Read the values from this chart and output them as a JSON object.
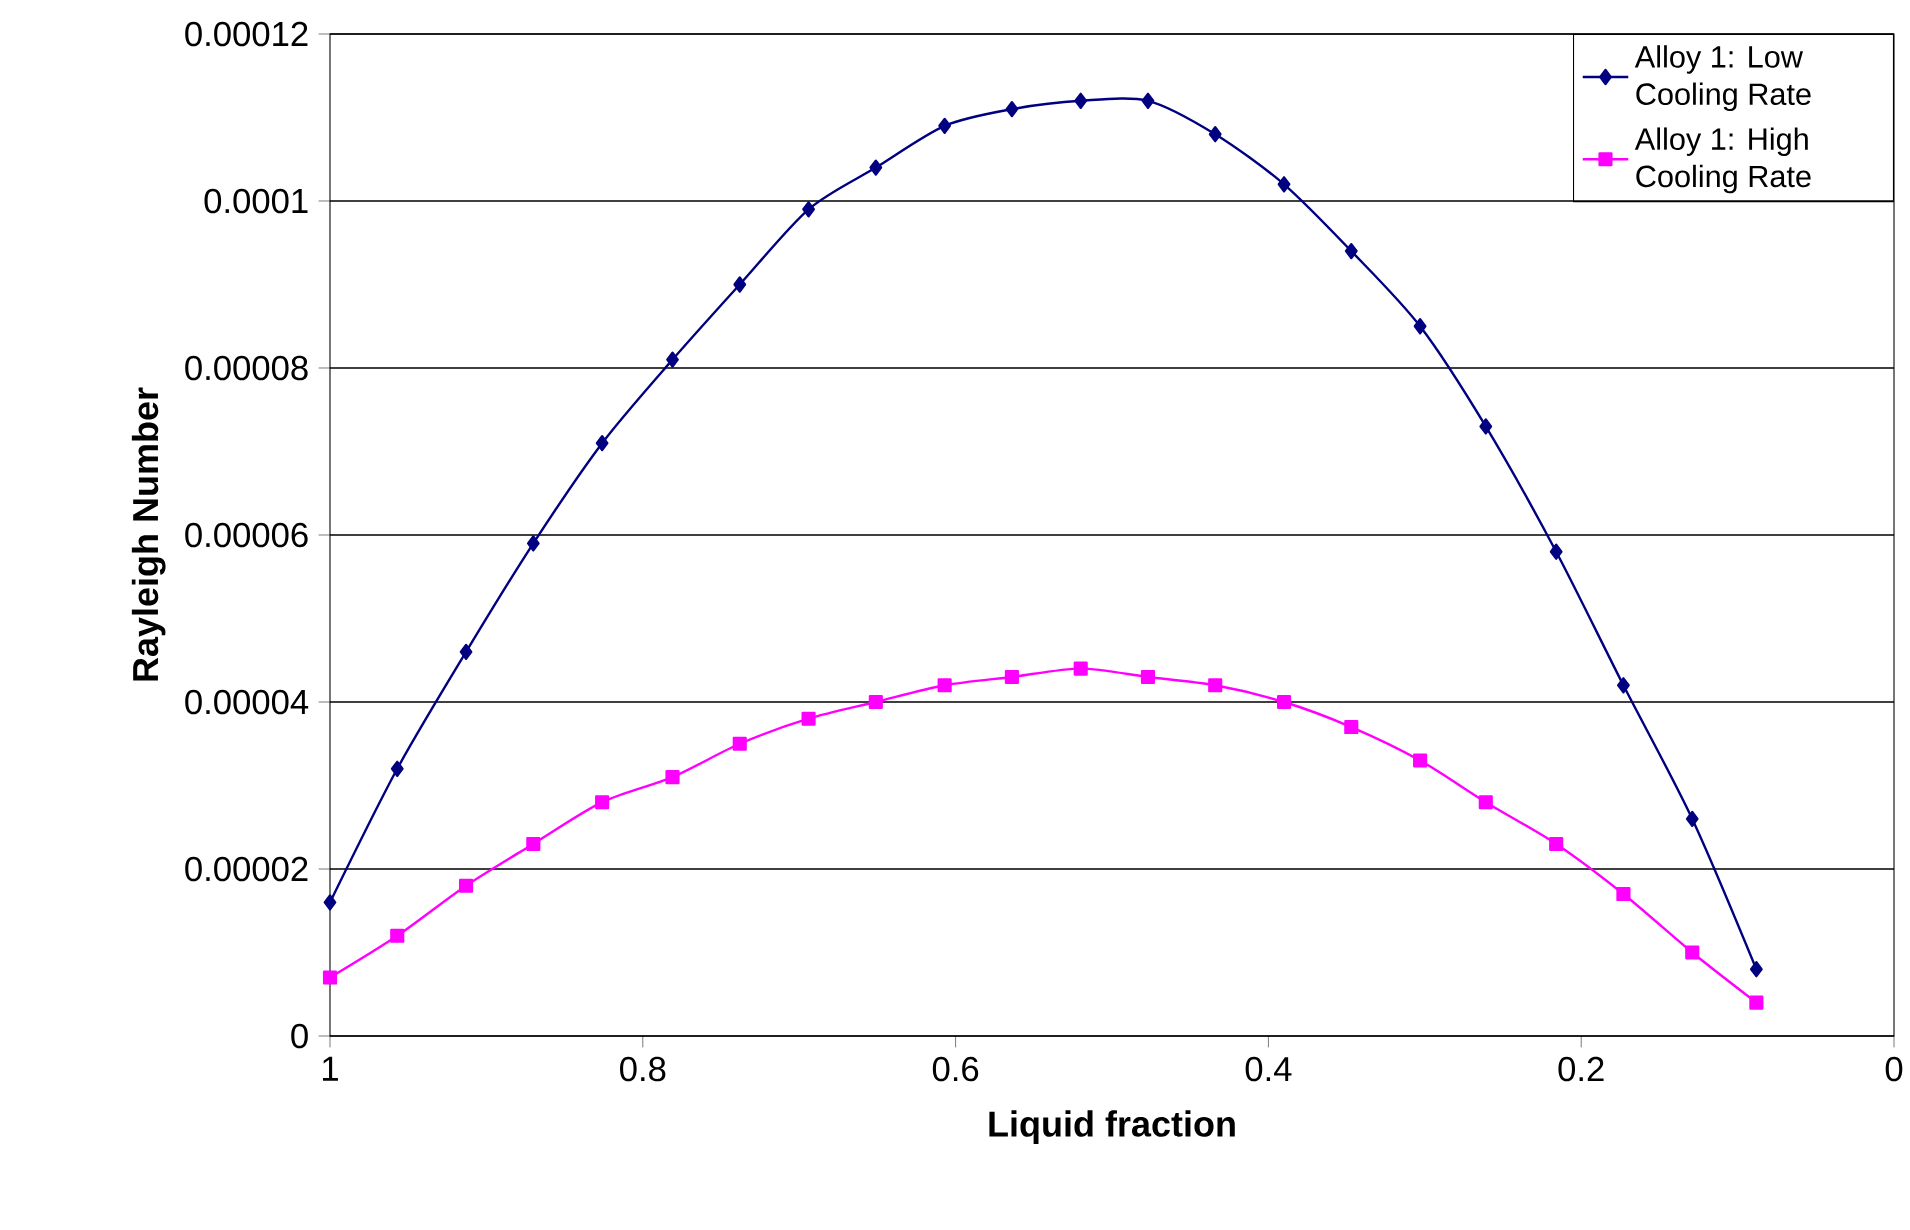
{
  "chart_data": {
    "type": "line",
    "xlabel": "Liquid fraction",
    "ylabel": "Rayleigh Number",
    "x": [
      1,
      0.957,
      0.913,
      0.87,
      0.826,
      0.781,
      0.738,
      0.694,
      0.651,
      0.607,
      0.564,
      0.52,
      0.477,
      0.434,
      0.39,
      0.347,
      0.303,
      0.261,
      0.216,
      0.173,
      0.129,
      0.088
    ],
    "series": [
      {
        "name": "Alloy 1: Low Cooling Rate",
        "color": "#000080",
        "marker": "diamond",
        "values": [
          1.6e-05,
          3.2e-05,
          4.6e-05,
          5.9e-05,
          7.1e-05,
          8.1e-05,
          9e-05,
          9.9e-05,
          0.000104,
          0.000109,
          0.000111,
          0.000112,
          0.000112,
          0.000108,
          0.000102,
          9.4e-05,
          8.5e-05,
          7.3e-05,
          5.8e-05,
          4.2e-05,
          2.6e-05,
          8e-06
        ]
      },
      {
        "name": "Alloy 1: High Cooling Rate",
        "color": "#ff00ff",
        "marker": "square",
        "values": [
          7e-06,
          1.2e-05,
          1.8e-05,
          2.3e-05,
          2.8e-05,
          3.1e-05,
          3.5e-05,
          3.8e-05,
          4e-05,
          4.2e-05,
          4.3e-05,
          4.4e-05,
          4.3e-05,
          4.2e-05,
          4e-05,
          3.7e-05,
          3.3e-05,
          2.8e-05,
          2.3e-05,
          1.7e-05,
          1e-05,
          4e-06
        ]
      }
    ],
    "xlim": [
      1,
      0
    ],
    "ylim": [
      0,
      0.00012
    ],
    "xticks": [
      1,
      0.8,
      0.6,
      0.4,
      0.2,
      0
    ],
    "yticks": [
      {
        "value": 0,
        "label": "0"
      },
      {
        "value": 2e-05,
        "label": "0.00002"
      },
      {
        "value": 4e-05,
        "label": "0.00004"
      },
      {
        "value": 6e-05,
        "label": "0.00006"
      },
      {
        "value": 8e-05,
        "label": "0.00008"
      },
      {
        "value": 0.0001,
        "label": "0.0001"
      },
      {
        "value": 0.00012,
        "label": "0.00012"
      }
    ],
    "grid": "y",
    "legend": "top right",
    "line_style": "solid"
  }
}
